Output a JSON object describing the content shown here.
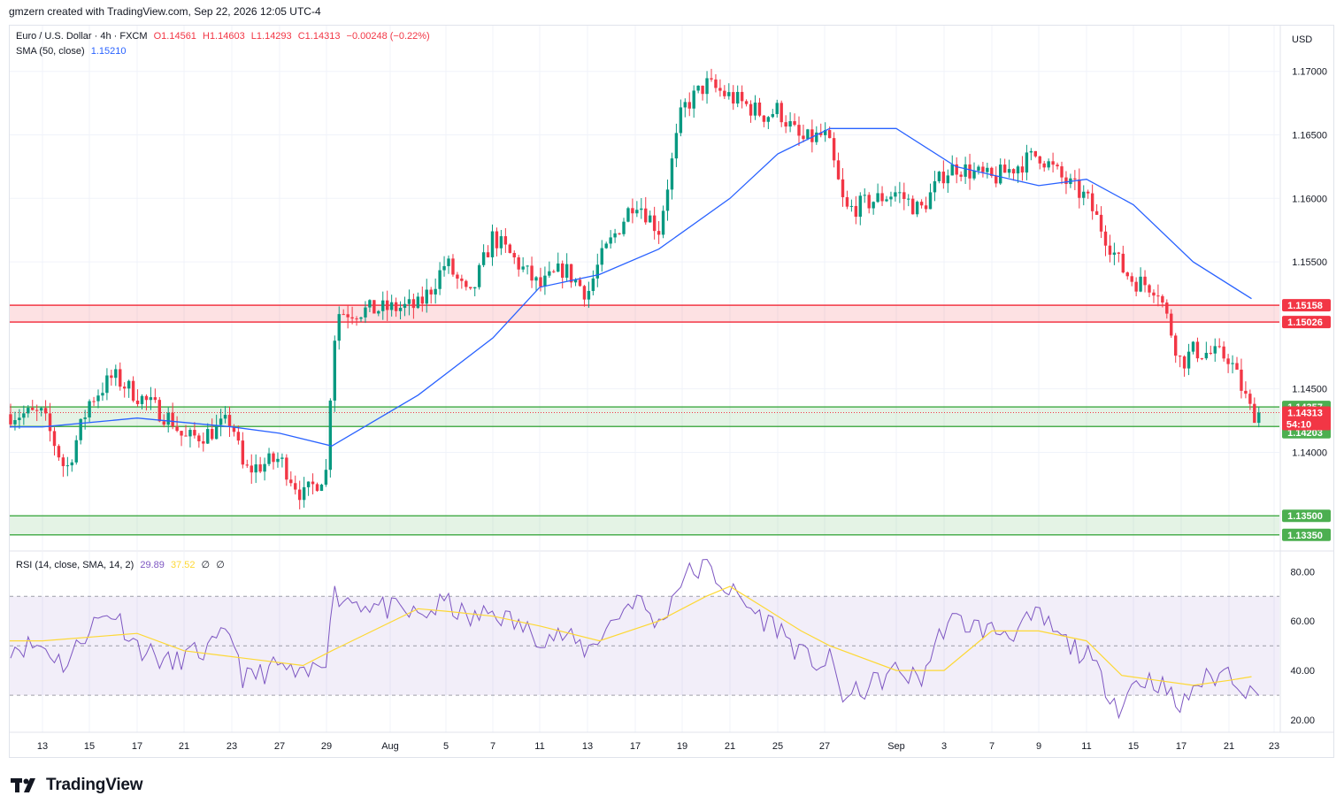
{
  "header": {
    "credit": "gmzern created with TradingView.com, Sep 22, 2026 12:05 UTC-4"
  },
  "legend": {
    "symbol": "Euro / U.S. Dollar · 4h · FXCM",
    "open": "O1.14561",
    "high": "H1.14603",
    "low": "L1.14293",
    "close": "C1.14313",
    "change": "−0.00248 (−0.22%)",
    "sma_label": "SMA (50, close)",
    "sma_value": "1.15210",
    "rsi_label": "RSI (14, close, SMA, 14, 2)",
    "rsi_value": "29.89",
    "rsi_ma_value": "37.52",
    "rsi_extra1": "∅",
    "rsi_extra2": "∅"
  },
  "currency": "USD",
  "countdown": "54:10",
  "footer": {
    "brand": "TradingView"
  },
  "colors": {
    "up": "#089981",
    "down": "#f23645",
    "sma": "#2962ff",
    "rsi": "#7e57c2",
    "rsi_ma": "#fdd835",
    "resistance_zone": "#f23645",
    "support_zone": "#4caf50"
  },
  "chart_data": [
    {
      "type": "candlestick",
      "title": "Euro / U.S. Dollar · 4h · FXCM",
      "ylim": [
        1.1323,
        1.1736
      ],
      "y_ticks": [
        "1.14000",
        "1.14500",
        "1.15500",
        "1.16000",
        "1.16500",
        "1.17000"
      ],
      "x_ticks": [
        "13",
        "15",
        "17",
        "21",
        "23",
        "27",
        "29",
        "Aug",
        "5",
        "7",
        "11",
        "13",
        "17",
        "19",
        "21",
        "25",
        "27",
        "Sep",
        "3",
        "7",
        "9",
        "11",
        "15",
        "17",
        "21",
        "23"
      ],
      "approx_close_path": [
        {
          "date": "Jul 13",
          "close": 1.143
        },
        {
          "date": "Jul 14",
          "close": 1.1385
        },
        {
          "date": "Jul 15",
          "close": 1.144
        },
        {
          "date": "Jul 16",
          "close": 1.146
        },
        {
          "date": "Jul 17",
          "close": 1.1445
        },
        {
          "date": "Jul 20",
          "close": 1.1425
        },
        {
          "date": "Jul 21",
          "close": 1.141
        },
        {
          "date": "Jul 22",
          "close": 1.1415
        },
        {
          "date": "Jul 23",
          "close": 1.1425
        },
        {
          "date": "Jul 24",
          "close": 1.1385
        },
        {
          "date": "Jul 27",
          "close": 1.1395
        },
        {
          "date": "Jul 28",
          "close": 1.1365
        },
        {
          "date": "Jul 29",
          "close": 1.1385
        },
        {
          "date": "Jul 30",
          "close": 1.147
        },
        {
          "date": "Jul 31",
          "close": 1.151
        },
        {
          "date": "Aug 3",
          "close": 1.1515
        },
        {
          "date": "Aug 4",
          "close": 1.153
        },
        {
          "date": "Aug 5",
          "close": 1.155
        },
        {
          "date": "Aug 6",
          "close": 1.152
        },
        {
          "date": "Aug 7",
          "close": 1.157
        },
        {
          "date": "Aug 10",
          "close": 1.154
        },
        {
          "date": "Aug 11",
          "close": 1.153
        },
        {
          "date": "Aug 12",
          "close": 1.1545
        },
        {
          "date": "Aug 13",
          "close": 1.1525
        },
        {
          "date": "Aug 14",
          "close": 1.155
        },
        {
          "date": "Aug 17",
          "close": 1.16
        },
        {
          "date": "Aug 18",
          "close": 1.1575
        },
        {
          "date": "Aug 19",
          "close": 1.167
        },
        {
          "date": "Aug 20",
          "close": 1.169
        },
        {
          "date": "Aug 21",
          "close": 1.168
        },
        {
          "date": "Aug 24",
          "close": 1.1665
        },
        {
          "date": "Aug 25",
          "close": 1.167
        },
        {
          "date": "Aug 26",
          "close": 1.1645
        },
        {
          "date": "Aug 27",
          "close": 1.165
        },
        {
          "date": "Aug 28",
          "close": 1.164
        },
        {
          "date": "Aug 31",
          "close": 1.159
        },
        {
          "date": "Sep 1",
          "close": 1.1605
        },
        {
          "date": "Sep 2",
          "close": 1.159
        },
        {
          "date": "Sep 3",
          "close": 1.162
        },
        {
          "date": "Sep 4",
          "close": 1.1625
        },
        {
          "date": "Sep 7",
          "close": 1.1615
        },
        {
          "date": "Sep 8",
          "close": 1.1625
        },
        {
          "date": "Sep 9",
          "close": 1.1635
        },
        {
          "date": "Sep 10",
          "close": 1.1615
        },
        {
          "date": "Sep 11",
          "close": 1.16
        },
        {
          "date": "Sep 14",
          "close": 1.1545
        },
        {
          "date": "Sep 15",
          "close": 1.1535
        },
        {
          "date": "Sep 16",
          "close": 1.153
        },
        {
          "date": "Sep 17",
          "close": 1.147
        },
        {
          "date": "Sep 18",
          "close": 1.148
        },
        {
          "date": "Sep 21",
          "close": 1.1475
        },
        {
          "date": "Sep 22",
          "close": 1.1431
        }
      ],
      "sma50": [
        {
          "date": "Jul 13",
          "value": 1.142
        },
        {
          "date": "Jul 17",
          "value": 1.1427
        },
        {
          "date": "Jul 23",
          "value": 1.142
        },
        {
          "date": "Jul 27",
          "value": 1.1415
        },
        {
          "date": "Jul 30",
          "value": 1.1405
        },
        {
          "date": "Aug 3",
          "value": 1.1445
        },
        {
          "date": "Aug 7",
          "value": 1.149
        },
        {
          "date": "Aug 11",
          "value": 1.153
        },
        {
          "date": "Aug 14",
          "value": 1.154
        },
        {
          "date": "Aug 18",
          "value": 1.156
        },
        {
          "date": "Aug 21",
          "value": 1.16
        },
        {
          "date": "Aug 25",
          "value": 1.1635
        },
        {
          "date": "Aug 28",
          "value": 1.1655
        },
        {
          "date": "Sep 1",
          "value": 1.1655
        },
        {
          "date": "Sep 4",
          "value": 1.1625
        },
        {
          "date": "Sep 9",
          "value": 1.161
        },
        {
          "date": "Sep 11",
          "value": 1.1615
        },
        {
          "date": "Sep 15",
          "value": 1.1595
        },
        {
          "date": "Sep 18",
          "value": 1.155
        },
        {
          "date": "Sep 22",
          "value": 1.1521
        }
      ],
      "horizontal_levels": [
        {
          "label": "1.15158",
          "value": 1.15158,
          "color": "#f23645"
        },
        {
          "label": "1.15026",
          "value": 1.15026,
          "color": "#f23645"
        },
        {
          "label": "1.14357",
          "value": 1.14357,
          "color": "#4caf50"
        },
        {
          "label": "1.14203",
          "value": 1.14203,
          "color": "#4caf50"
        },
        {
          "label": "1.13500",
          "value": 1.135,
          "color": "#4caf50"
        },
        {
          "label": "1.13350",
          "value": 1.1335,
          "color": "#4caf50"
        }
      ],
      "last_price": {
        "label": "1.14313",
        "value": 1.14313
      }
    },
    {
      "type": "line",
      "title": "RSI (14, close, SMA, 14, 2)",
      "ylim": [
        15,
        88
      ],
      "y_ticks": [
        "20.00",
        "40.00",
        "60.00",
        "80.00"
      ],
      "bands": {
        "upper": 70,
        "middle": 50,
        "lower": 30
      },
      "rsi": [
        {
          "date": "Jul 13",
          "value": 50
        },
        {
          "date": "Jul 14",
          "value": 42
        },
        {
          "date": "Jul 15",
          "value": 58
        },
        {
          "date": "Jul 16",
          "value": 64
        },
        {
          "date": "Jul 17",
          "value": 50
        },
        {
          "date": "Jul 20",
          "value": 42
        },
        {
          "date": "Jul 21",
          "value": 46
        },
        {
          "date": "Jul 22",
          "value": 48
        },
        {
          "date": "Jul 23",
          "value": 56
        },
        {
          "date": "Jul 24",
          "value": 36
        },
        {
          "date": "Jul 27",
          "value": 42
        },
        {
          "date": "Jul 28",
          "value": 36
        },
        {
          "date": "Jul 29",
          "value": 46
        },
        {
          "date": "Jul 30",
          "value": 72
        },
        {
          "date": "Jul 31",
          "value": 70
        },
        {
          "date": "Aug 3",
          "value": 62
        },
        {
          "date": "Aug 4",
          "value": 64
        },
        {
          "date": "Aug 5",
          "value": 68
        },
        {
          "date": "Aug 6",
          "value": 60
        },
        {
          "date": "Aug 7",
          "value": 64
        },
        {
          "date": "Aug 10",
          "value": 56
        },
        {
          "date": "Aug 11",
          "value": 54
        },
        {
          "date": "Aug 12",
          "value": 54
        },
        {
          "date": "Aug 13",
          "value": 48
        },
        {
          "date": "Aug 14",
          "value": 54
        },
        {
          "date": "Aug 17",
          "value": 70
        },
        {
          "date": "Aug 18",
          "value": 58
        },
        {
          "date": "Aug 19",
          "value": 78
        },
        {
          "date": "Aug 20",
          "value": 82
        },
        {
          "date": "Aug 21",
          "value": 72
        },
        {
          "date": "Aug 24",
          "value": 60
        },
        {
          "date": "Aug 25",
          "value": 58
        },
        {
          "date": "Aug 26",
          "value": 46
        },
        {
          "date": "Aug 27",
          "value": 42
        },
        {
          "date": "Aug 28",
          "value": 44
        },
        {
          "date": "Aug 31",
          "value": 28
        },
        {
          "date": "Sep 1",
          "value": 40
        },
        {
          "date": "Sep 2",
          "value": 36
        },
        {
          "date": "Sep 3",
          "value": 58
        },
        {
          "date": "Sep 4",
          "value": 60
        },
        {
          "date": "Sep 7",
          "value": 56
        },
        {
          "date": "Sep 8",
          "value": 56
        },
        {
          "date": "Sep 9",
          "value": 62
        },
        {
          "date": "Sep 10",
          "value": 52
        },
        {
          "date": "Sep 11",
          "value": 46
        },
        {
          "date": "Sep 14",
          "value": 24
        },
        {
          "date": "Sep 15",
          "value": 36
        },
        {
          "date": "Sep 16",
          "value": 36
        },
        {
          "date": "Sep 17",
          "value": 24
        },
        {
          "date": "Sep 18",
          "value": 34
        },
        {
          "date": "Sep 21",
          "value": 40
        },
        {
          "date": "Sep 22",
          "value": 30
        }
      ],
      "rsi_ma": [
        {
          "date": "Jul 13",
          "value": 52
        },
        {
          "date": "Jul 17",
          "value": 55
        },
        {
          "date": "Jul 21",
          "value": 48
        },
        {
          "date": "Jul 24",
          "value": 45
        },
        {
          "date": "Jul 28",
          "value": 42
        },
        {
          "date": "Jul 30",
          "value": 48
        },
        {
          "date": "Aug 3",
          "value": 65
        },
        {
          "date": "Aug 5",
          "value": 64
        },
        {
          "date": "Aug 7",
          "value": 62
        },
        {
          "date": "Aug 11",
          "value": 58
        },
        {
          "date": "Aug 14",
          "value": 52
        },
        {
          "date": "Aug 18",
          "value": 60
        },
        {
          "date": "Aug 20",
          "value": 70
        },
        {
          "date": "Aug 21",
          "value": 74
        },
        {
          "date": "Aug 24",
          "value": 65
        },
        {
          "date": "Aug 26",
          "value": 56
        },
        {
          "date": "Aug 28",
          "value": 50
        },
        {
          "date": "Sep 1",
          "value": 40
        },
        {
          "date": "Sep 3",
          "value": 40
        },
        {
          "date": "Sep 7",
          "value": 56
        },
        {
          "date": "Sep 9",
          "value": 56
        },
        {
          "date": "Sep 11",
          "value": 52
        },
        {
          "date": "Sep 14",
          "value": 38
        },
        {
          "date": "Sep 16",
          "value": 36
        },
        {
          "date": "Sep 18",
          "value": 34
        },
        {
          "date": "Sep 21",
          "value": 36
        },
        {
          "date": "Sep 22",
          "value": 37.5
        }
      ]
    }
  ]
}
